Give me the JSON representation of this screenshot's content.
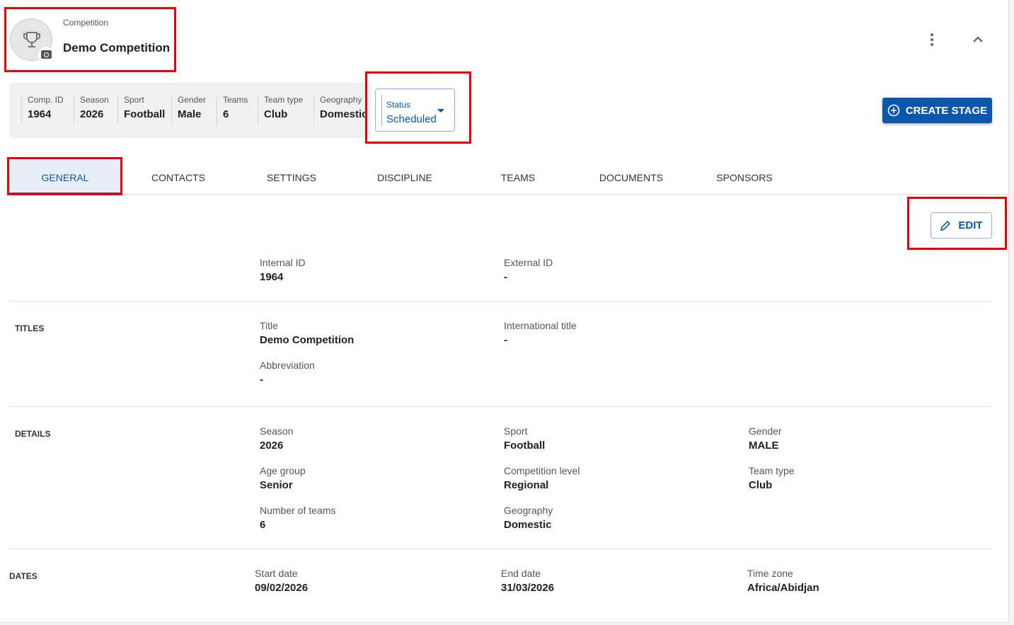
{
  "header": {
    "overline": "Competition",
    "title": "Demo Competition"
  },
  "summary": [
    {
      "label": "Comp. ID",
      "value": "1964"
    },
    {
      "label": "Season",
      "value": "2026"
    },
    {
      "label": "Sport",
      "value": "Football"
    },
    {
      "label": "Gender",
      "value": "Male"
    },
    {
      "label": "Teams",
      "value": "6"
    },
    {
      "label": "Team type",
      "value": "Club"
    },
    {
      "label": "Geography",
      "value": "Domestic"
    }
  ],
  "status": {
    "label": "Status",
    "value": "Scheduled"
  },
  "actions": {
    "create_stage": "CREATE STAGE",
    "edit": "EDIT"
  },
  "tabs": [
    "GENERAL",
    "CONTACTS",
    "SETTINGS",
    "DISCIPLINE",
    "TEAMS",
    "DOCUMENTS",
    "SPONSORS"
  ],
  "ids": {
    "internal_label": "Internal ID",
    "internal": "1964",
    "external_label": "External ID",
    "external": "-"
  },
  "titles": {
    "section": "TITLES",
    "title_label": "Title",
    "title": "Demo Competition",
    "intl_label": "International title",
    "intl": "-",
    "abbr_label": "Abbreviation",
    "abbr": "-"
  },
  "details": {
    "section": "DETAILS",
    "fields": [
      {
        "label": "Season",
        "value": "2026"
      },
      {
        "label": "Sport",
        "value": "Football"
      },
      {
        "label": "Gender",
        "value": "MALE"
      },
      {
        "label": "Age group",
        "value": "Senior"
      },
      {
        "label": "Competition level",
        "value": "Regional"
      },
      {
        "label": "Team type",
        "value": "Club"
      },
      {
        "label": "Number of teams",
        "value": "6"
      },
      {
        "label": "Geography",
        "value": "Domestic"
      }
    ]
  },
  "dates": {
    "section": "DATES",
    "fields": [
      {
        "label": "Start date",
        "value": "09/02/2026"
      },
      {
        "label": "End date",
        "value": "31/03/2026"
      },
      {
        "label": "Time zone",
        "value": "Africa/Abidjan"
      }
    ]
  },
  "colors": {
    "primary": "#0b57b0",
    "highlight": "#e8000b"
  }
}
